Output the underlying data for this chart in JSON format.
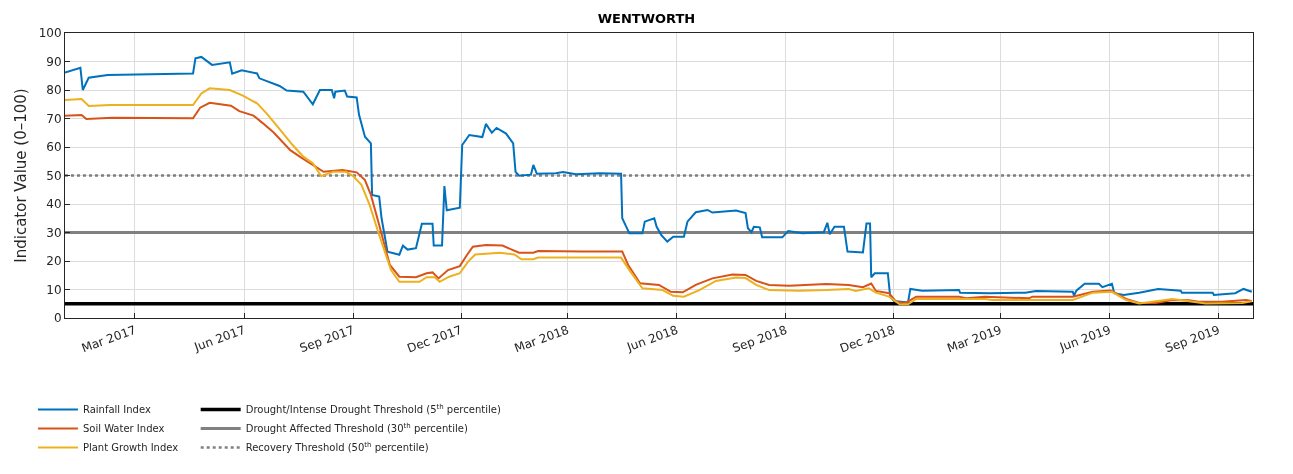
{
  "chart_data": {
    "type": "line",
    "title": "WENTWORTH",
    "ylabel": "Indicator Value (0–100)",
    "xlim": [
      "2017-01-01",
      "2019-09-30"
    ],
    "ylim": [
      0,
      100
    ],
    "xticks": [
      {
        "value": "2017-03-01",
        "label": "Mar 2017"
      },
      {
        "value": "2017-06-01",
        "label": "Jun 2017"
      },
      {
        "value": "2017-09-01",
        "label": "Sep 2017"
      },
      {
        "value": "2017-12-01",
        "label": "Dec 2017"
      },
      {
        "value": "2018-03-01",
        "label": "Mar 2018"
      },
      {
        "value": "2018-06-01",
        "label": "Jun 2018"
      },
      {
        "value": "2018-09-01",
        "label": "Sep 2018"
      },
      {
        "value": "2018-12-01",
        "label": "Dec 2018"
      },
      {
        "value": "2019-03-01",
        "label": "Mar 2019"
      },
      {
        "value": "2019-06-01",
        "label": "Jun 2019"
      },
      {
        "value": "2019-09-01",
        "label": "Sep 2019"
      }
    ],
    "yticks": [
      0,
      10,
      20,
      30,
      40,
      50,
      60,
      70,
      80,
      90,
      100
    ],
    "grid": true,
    "legend": "bottom left",
    "marker": "none",
    "line_style": "solid",
    "series": [
      {
        "name": "Rainfall Index",
        "color": "#0072bd",
        "x": [
          "2017-01-01",
          "2017-01-14",
          "2017-01-16",
          "2017-01-21",
          "2017-02-06",
          "2017-04-19",
          "2017-04-21",
          "2017-04-26",
          "2017-05-05",
          "2017-05-20",
          "2017-05-22",
          "2017-05-30",
          "2017-06-12",
          "2017-06-14",
          "2017-07-01",
          "2017-07-07",
          "2017-07-21",
          "2017-07-29",
          "2017-08-04",
          "2017-08-14",
          "2017-08-16",
          "2017-08-17",
          "2017-08-25",
          "2017-08-27",
          "2017-09-04",
          "2017-09-06",
          "2017-09-11",
          "2017-09-16",
          "2017-09-17",
          "2017-09-23",
          "2017-09-25",
          "2017-09-30",
          "2017-10-10",
          "2017-10-13",
          "2017-10-17",
          "2017-10-24",
          "2017-10-29",
          "2017-11-07",
          "2017-11-08",
          "2017-11-15",
          "2017-11-17",
          "2017-11-19",
          "2017-11-30",
          "2017-12-02",
          "2017-12-08",
          "2017-12-19",
          "2017-12-22",
          "2017-12-27",
          "2017-12-31",
          "2018-01-08",
          "2018-01-14",
          "2018-01-16",
          "2018-01-19",
          "2018-01-29",
          "2018-01-31",
          "2018-02-03",
          "2018-02-19",
          "2018-02-25",
          "2018-03-08",
          "2018-03-28",
          "2018-04-15",
          "2018-04-16",
          "2018-04-22",
          "2018-05-03",
          "2018-05-05",
          "2018-05-13",
          "2018-05-15",
          "2018-05-19",
          "2018-05-24",
          "2018-05-29",
          "2018-06-07",
          "2018-06-10",
          "2018-06-17",
          "2018-06-27",
          "2018-07-01",
          "2018-07-21",
          "2018-07-29",
          "2018-07-31",
          "2018-08-03",
          "2018-08-05",
          "2018-08-10",
          "2018-08-12",
          "2018-08-29",
          "2018-09-03",
          "2018-09-15",
          "2018-10-03",
          "2018-10-06",
          "2018-10-08",
          "2018-10-12",
          "2018-10-20",
          "2018-10-23",
          "2018-11-05",
          "2018-11-08",
          "2018-11-11",
          "2018-11-12",
          "2018-11-15",
          "2018-11-26",
          "2018-11-28",
          "2018-12-01",
          "2018-12-13",
          "2018-12-15",
          "2018-12-25",
          "2019-01-25",
          "2019-01-26",
          "2019-02-20",
          "2019-03-22",
          "2019-03-31",
          "2019-05-01",
          "2019-05-02",
          "2019-05-04",
          "2019-05-11",
          "2019-05-23",
          "2019-05-26",
          "2019-06-03",
          "2019-06-05",
          "2019-06-13",
          "2019-06-26",
          "2019-07-12",
          "2019-07-31",
          "2019-08-01",
          "2019-08-27",
          "2019-08-28",
          "2019-09-15",
          "2019-09-22",
          "2019-09-29"
        ],
        "values": [
          86.1,
          87.8,
          80,
          84.3,
          85.3,
          85.8,
          91.1,
          91.6,
          88.8,
          89.7,
          85.7,
          86.9,
          85.8,
          84.1,
          81.4,
          79.8,
          79.4,
          75,
          80,
          80,
          77.1,
          79.4,
          79.8,
          77.7,
          77.4,
          71.3,
          63.6,
          61.3,
          43.2,
          42.6,
          35,
          23.3,
          22.2,
          25.4,
          24,
          24.5,
          33.1,
          33.1,
          25.4,
          25.4,
          46.3,
          37.8,
          38.7,
          60.7,
          64.2,
          63.5,
          68.1,
          65,
          66.7,
          64.7,
          61.3,
          51.3,
          49.9,
          50.3,
          53.7,
          50.6,
          50.8,
          51.2,
          50.4,
          50.8,
          50.6,
          35,
          29.7,
          29.7,
          33.8,
          35,
          32,
          29.1,
          26.8,
          28.5,
          28.5,
          33.8,
          37.1,
          37.9,
          37,
          37.7,
          36.8,
          31.5,
          30.1,
          32,
          31.8,
          28.3,
          28.3,
          30.5,
          29.7,
          30.1,
          33.4,
          29.4,
          32,
          32,
          23.3,
          23,
          33.2,
          33.2,
          14.3,
          15.7,
          15.7,
          7.5,
          6,
          5.4,
          10.2,
          9.6,
          9.8,
          8.9,
          8.7,
          8.9,
          9.5,
          9.2,
          7.8,
          9.6,
          12,
          12,
          10.8,
          12,
          8.7,
          8.1,
          8.9,
          10.2,
          9.6,
          8.9,
          8.9,
          8.1,
          8.7,
          10.2,
          9.2
        ]
      },
      {
        "name": "Soil Water Index",
        "color": "#d95319",
        "x": [
          "2017-01-01",
          "2017-01-15",
          "2017-01-19",
          "2017-02-10",
          "2017-04-19",
          "2017-04-25",
          "2017-05-03",
          "2017-05-21",
          "2017-05-28",
          "2017-06-09",
          "2017-06-17",
          "2017-06-26",
          "2017-07-10",
          "2017-07-18",
          "2017-07-29",
          "2017-08-07",
          "2017-08-23",
          "2017-09-04",
          "2017-09-11",
          "2017-09-16",
          "2017-09-23",
          "2017-10-02",
          "2017-10-10",
          "2017-10-24",
          "2017-11-02",
          "2017-11-07",
          "2017-11-12",
          "2017-11-20",
          "2017-11-30",
          "2017-12-06",
          "2017-12-11",
          "2017-12-22",
          "2018-01-05",
          "2018-01-19",
          "2018-01-31",
          "2018-02-04",
          "2018-03-14",
          "2018-04-16",
          "2018-04-21",
          "2018-05-01",
          "2018-05-17",
          "2018-05-27",
          "2018-06-06",
          "2018-06-17",
          "2018-07-01",
          "2018-07-18",
          "2018-07-29",
          "2018-08-07",
          "2018-08-18",
          "2018-09-04",
          "2018-10-05",
          "2018-10-24",
          "2018-11-05",
          "2018-11-12",
          "2018-11-16",
          "2018-11-27",
          "2018-12-03",
          "2018-12-11",
          "2018-12-20",
          "2019-01-25",
          "2019-01-31",
          "2019-02-16",
          "2019-03-25",
          "2019-03-28",
          "2019-05-01",
          "2019-05-18",
          "2019-06-02",
          "2019-06-15",
          "2019-06-26",
          "2019-07-10",
          "2019-07-24",
          "2019-08-07",
          "2019-08-15",
          "2019-09-04",
          "2019-09-24",
          "2019-09-29"
        ],
        "values": [
          71,
          71.2,
          69.8,
          70.3,
          70.1,
          73.8,
          75.5,
          74.5,
          72.6,
          71,
          68.3,
          65.1,
          58.9,
          56.6,
          53.7,
          51.3,
          51.9,
          51.1,
          48.4,
          43.2,
          32.6,
          18.6,
          14.5,
          14.3,
          15.7,
          16,
          13.9,
          16.8,
          18.2,
          22.1,
          25,
          25.6,
          25.4,
          22.9,
          22.9,
          23.5,
          23.3,
          23.3,
          18.6,
          12.2,
          11.6,
          9.2,
          9,
          11.6,
          13.9,
          15.3,
          15.1,
          13,
          11.6,
          11.3,
          11.9,
          11.6,
          10.8,
          12.1,
          9.5,
          8.7,
          5.7,
          5.3,
          7.5,
          7.5,
          6.9,
          7.5,
          6.9,
          7.5,
          7.5,
          9.2,
          9.6,
          6.7,
          5.3,
          5.3,
          6.3,
          6.2,
          5.7,
          5.7,
          6.3,
          6
        ]
      },
      {
        "name": "Plant Growth Index",
        "color": "#edb120",
        "x": [
          "2017-01-01",
          "2017-01-15",
          "2017-01-21",
          "2017-02-08",
          "2017-04-19",
          "2017-04-26",
          "2017-05-03",
          "2017-05-20",
          "2017-05-31",
          "2017-06-12",
          "2017-06-20",
          "2017-07-01",
          "2017-07-12",
          "2017-07-21",
          "2017-07-29",
          "2017-08-05",
          "2017-08-15",
          "2017-08-26",
          "2017-09-01",
          "2017-09-08",
          "2017-09-15",
          "2017-09-23",
          "2017-10-03",
          "2017-10-10",
          "2017-10-27",
          "2017-11-02",
          "2017-11-09",
          "2017-11-13",
          "2017-11-21",
          "2017-11-30",
          "2017-12-07",
          "2017-12-13",
          "2018-01-03",
          "2018-01-15",
          "2018-01-21",
          "2018-01-31",
          "2018-02-04",
          "2018-04-15",
          "2018-04-22",
          "2018-05-03",
          "2018-05-20",
          "2018-05-29",
          "2018-06-07",
          "2018-06-20",
          "2018-07-04",
          "2018-07-21",
          "2018-07-29",
          "2018-08-07",
          "2018-08-18",
          "2018-09-12",
          "2018-10-05",
          "2018-10-24",
          "2018-10-30",
          "2018-11-10",
          "2018-11-16",
          "2018-11-27",
          "2018-12-06",
          "2018-12-13",
          "2018-12-20",
          "2019-02-16",
          "2019-02-22",
          "2019-05-01",
          "2019-05-18",
          "2019-06-03",
          "2019-06-15",
          "2019-06-26",
          "2019-07-24",
          "2019-08-07",
          "2019-08-21",
          "2019-09-21",
          "2019-09-29"
        ],
        "values": [
          76.5,
          76.8,
          74.4,
          74.7,
          74.7,
          78.8,
          80.6,
          80,
          78,
          75.3,
          71.8,
          66.3,
          60.7,
          56.6,
          54.3,
          49.8,
          51.3,
          51.3,
          49.8,
          46.7,
          39.6,
          29.1,
          16.8,
          12.7,
          12.7,
          14.3,
          14.3,
          12.7,
          14.5,
          15.7,
          19.8,
          22.3,
          22.9,
          22.3,
          20.6,
          20.6,
          21.2,
          21.2,
          16.8,
          10.4,
          9.8,
          7.8,
          7.5,
          9.8,
          13,
          14.2,
          14,
          11.6,
          9.8,
          9.6,
          9.8,
          10.2,
          9.5,
          10.4,
          8.9,
          7.5,
          4.8,
          4.8,
          6.7,
          6.7,
          6.3,
          6.3,
          8.9,
          9.2,
          6.3,
          5.1,
          6.7,
          5.9,
          5.1,
          5.3,
          5.9
        ]
      }
    ],
    "ref_lines": [
      {
        "axis": "y",
        "value": 5,
        "label": "Drought/Intense Drought Threshold (5$^{th}$ percentile)",
        "color": "#000000",
        "line_style": "solid"
      },
      {
        "axis": "y",
        "value": 30,
        "label": "Drought Affected Threshold (30$^{th}$ percentile)",
        "color": "#808080",
        "line_style": "solid"
      },
      {
        "axis": "y",
        "value": 50,
        "label": "Recovery Threshold (50$^{th}$ percentile)",
        "color": "#808080",
        "line_style": "dotted"
      }
    ]
  }
}
